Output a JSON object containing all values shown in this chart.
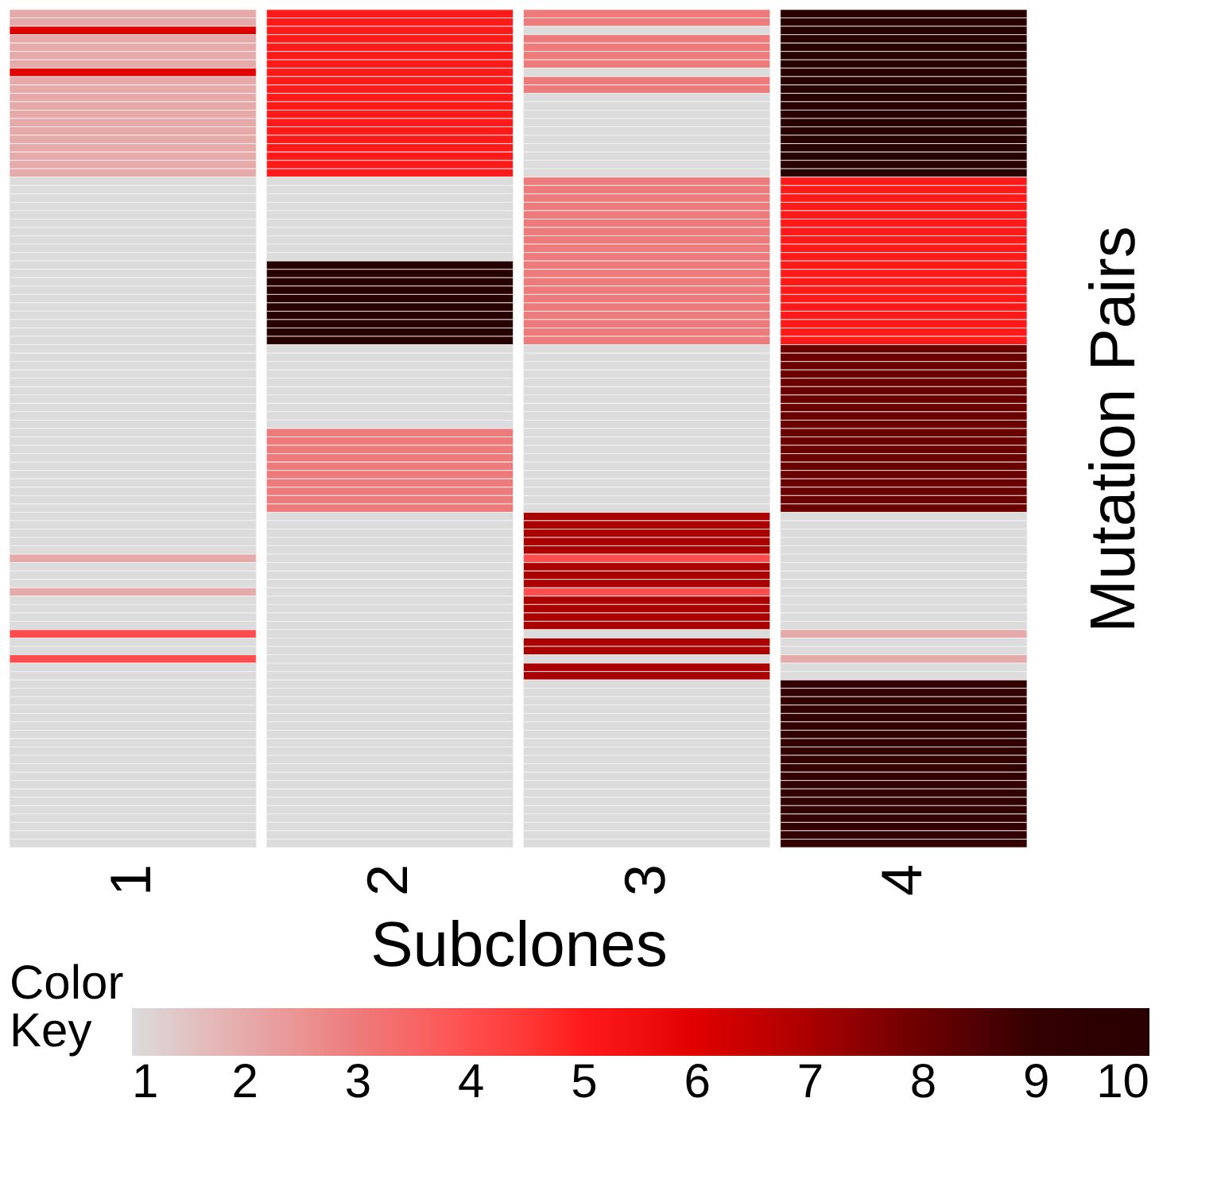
{
  "chart_data": {
    "type": "heatmap",
    "xlabel": "Subclones",
    "ylabel": "Mutation Pairs",
    "legend_title": "Color Key",
    "y_categories": [
      null,
      null,
      null,
      null,
      null,
      null,
      null,
      null,
      null,
      null,
      null,
      null,
      null,
      null,
      null,
      null,
      null,
      null,
      null,
      null,
      null,
      null,
      null,
      null,
      null,
      null,
      null,
      null,
      null,
      null,
      null,
      null,
      null,
      null,
      null,
      null,
      null,
      null,
      null,
      null,
      null,
      null,
      null,
      null,
      null,
      null,
      null,
      null,
      null,
      null,
      null,
      null,
      null,
      null,
      null,
      null,
      null,
      null,
      null,
      null,
      null,
      null,
      null,
      null,
      null,
      null,
      null,
      null,
      null,
      null,
      null,
      null,
      null,
      null,
      null,
      null,
      null,
      null,
      null,
      null,
      null,
      null,
      null,
      null,
      null,
      null,
      null,
      null,
      null,
      null,
      null,
      null,
      null,
      null,
      null,
      null,
      null,
      null,
      null,
      null
    ],
    "categories": [
      "1",
      "2",
      "3",
      "4"
    ],
    "clim": [
      1,
      10
    ],
    "cticks": [
      1,
      2,
      3,
      4,
      5,
      6,
      7,
      8,
      9,
      10
    ],
    "cells": [
      [
        2,
        5,
        3,
        10
      ],
      [
        2,
        5,
        3,
        10
      ],
      [
        6,
        5,
        1,
        10
      ],
      [
        2,
        5,
        3,
        10
      ],
      [
        2,
        5,
        3,
        10
      ],
      [
        2,
        5,
        3,
        10
      ],
      [
        2,
        5,
        3,
        10
      ],
      [
        6,
        5,
        1,
        10
      ],
      [
        2,
        5,
        3,
        10
      ],
      [
        2,
        5,
        3,
        10
      ],
      [
        2,
        5,
        1,
        10
      ],
      [
        2,
        5,
        1,
        10
      ],
      [
        2,
        5,
        1,
        10
      ],
      [
        2,
        5,
        1,
        10
      ],
      [
        2,
        5,
        1,
        10
      ],
      [
        2,
        5,
        1,
        10
      ],
      [
        2,
        5,
        1,
        10
      ],
      [
        2,
        5,
        1,
        10
      ],
      [
        2,
        5,
        1,
        10
      ],
      [
        2,
        5,
        1,
        10
      ],
      [
        1,
        1,
        3,
        5
      ],
      [
        1,
        1,
        3,
        5
      ],
      [
        1,
        1,
        3,
        5
      ],
      [
        1,
        1,
        3,
        5
      ],
      [
        1,
        1,
        3,
        5
      ],
      [
        1,
        1,
        3,
        5
      ],
      [
        1,
        1,
        3,
        5
      ],
      [
        1,
        1,
        3,
        5
      ],
      [
        1,
        1,
        3,
        5
      ],
      [
        1,
        1,
        3,
        5
      ],
      [
        1,
        10,
        3,
        5
      ],
      [
        1,
        10,
        3,
        5
      ],
      [
        1,
        10,
        3,
        5
      ],
      [
        1,
        10,
        3,
        5
      ],
      [
        1,
        10,
        3,
        5
      ],
      [
        1,
        10,
        3,
        5
      ],
      [
        1,
        10,
        3,
        5
      ],
      [
        1,
        10,
        3,
        5
      ],
      [
        1,
        10,
        3,
        5
      ],
      [
        1,
        10,
        3,
        5
      ],
      [
        1,
        1,
        1,
        8
      ],
      [
        1,
        1,
        1,
        8
      ],
      [
        1,
        1,
        1,
        8
      ],
      [
        1,
        1,
        1,
        8
      ],
      [
        1,
        1,
        1,
        8
      ],
      [
        1,
        1,
        1,
        8
      ],
      [
        1,
        1,
        1,
        8
      ],
      [
        1,
        1,
        1,
        8
      ],
      [
        1,
        1,
        1,
        8
      ],
      [
        1,
        1,
        1,
        8
      ],
      [
        1,
        3,
        1,
        8
      ],
      [
        1,
        3,
        1,
        8
      ],
      [
        1,
        3,
        1,
        8
      ],
      [
        1,
        3,
        1,
        8
      ],
      [
        1,
        3,
        1,
        8
      ],
      [
        1,
        3,
        1,
        8
      ],
      [
        1,
        3,
        1,
        8
      ],
      [
        1,
        3,
        1,
        8
      ],
      [
        1,
        3,
        1,
        8
      ],
      [
        1,
        3,
        1,
        8
      ],
      [
        1,
        1,
        7,
        1
      ],
      [
        1,
        1,
        7,
        1
      ],
      [
        1,
        1,
        7,
        1
      ],
      [
        1,
        1,
        7,
        1
      ],
      [
        1,
        1,
        7,
        1
      ],
      [
        2,
        1,
        4,
        1
      ],
      [
        1,
        1,
        7,
        1
      ],
      [
        1,
        1,
        7,
        1
      ],
      [
        1,
        1,
        7,
        1
      ],
      [
        2,
        1,
        4,
        1
      ],
      [
        1,
        1,
        7,
        1
      ],
      [
        1,
        1,
        7,
        1
      ],
      [
        1,
        1,
        7,
        1
      ],
      [
        1,
        1,
        7,
        1
      ],
      [
        4,
        1,
        1,
        2
      ],
      [
        1,
        1,
        7,
        1
      ],
      [
        1,
        1,
        7,
        1
      ],
      [
        4,
        1,
        1,
        2
      ],
      [
        1,
        1,
        7,
        1
      ],
      [
        1,
        1,
        7,
        1
      ],
      [
        1,
        1,
        1,
        9
      ],
      [
        1,
        1,
        1,
        9
      ],
      [
        1,
        1,
        1,
        9
      ],
      [
        1,
        1,
        1,
        9
      ],
      [
        1,
        1,
        1,
        9
      ],
      [
        1,
        1,
        1,
        9
      ],
      [
        1,
        1,
        1,
        9
      ],
      [
        1,
        1,
        1,
        9
      ],
      [
        1,
        1,
        1,
        9
      ],
      [
        1,
        1,
        1,
        9
      ],
      [
        1,
        1,
        1,
        9
      ],
      [
        1,
        1,
        1,
        9
      ],
      [
        1,
        1,
        1,
        9
      ],
      [
        1,
        1,
        1,
        9
      ],
      [
        1,
        1,
        1,
        9
      ],
      [
        1,
        1,
        1,
        9
      ],
      [
        1,
        1,
        1,
        9
      ],
      [
        1,
        1,
        1,
        9
      ],
      [
        1,
        1,
        1,
        9
      ],
      [
        1,
        1,
        1,
        9
      ]
    ]
  }
}
